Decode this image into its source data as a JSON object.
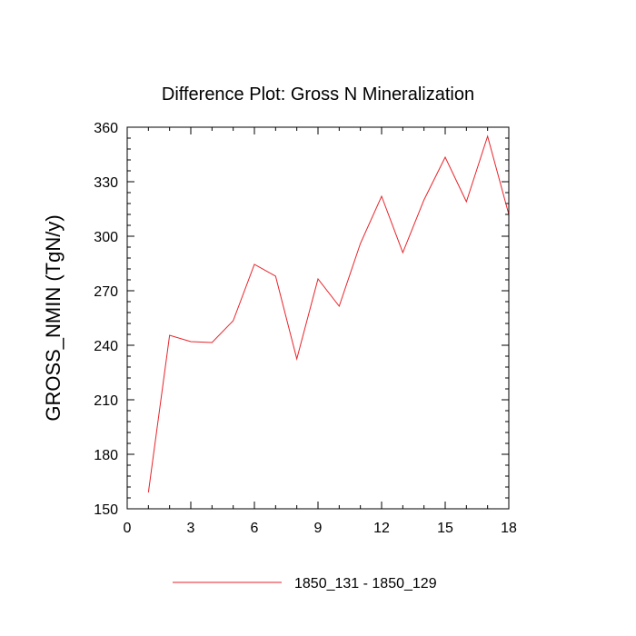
{
  "chart_data": {
    "type": "line",
    "title": "Difference Plot: Gross N Mineralization",
    "xlabel": "",
    "ylabel": "GROSS_NMIN  (TgN/y)",
    "xlim": [
      0,
      18
    ],
    "ylim": [
      150,
      360
    ],
    "xticks": [
      0,
      3,
      6,
      9,
      12,
      15,
      18
    ],
    "yticks": [
      150,
      180,
      210,
      240,
      270,
      300,
      330,
      360
    ],
    "grid": false,
    "legend_position": "bottom-center",
    "series": [
      {
        "name": "1850_131 - 1850_129",
        "color": "#e8232a",
        "x": [
          1,
          2,
          3,
          4,
          5,
          6,
          7,
          8,
          9,
          10,
          11,
          12,
          13,
          14,
          15,
          16,
          17,
          18
        ],
        "y": [
          159,
          245.5,
          242,
          241.5,
          253.5,
          284.5,
          278,
          232.5,
          276.5,
          261.5,
          296,
          322,
          291,
          320,
          343.5,
          319,
          355,
          312
        ]
      }
    ]
  }
}
